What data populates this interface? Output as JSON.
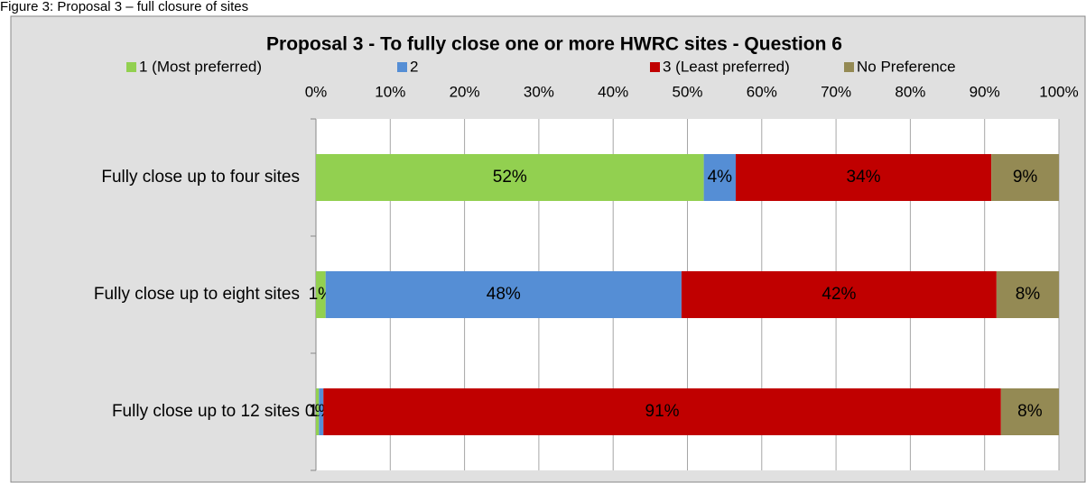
{
  "chart_data": {
    "type": "stacked-barh",
    "caption": "Figure 3: Proposal 3 – full closure of sites",
    "title": "Proposal 3 - To fully close one or more HWRC sites - Question 6",
    "categories": [
      "Fully close up to four sites",
      "Fully close up to eight sites",
      "Fully close up to 12 sites"
    ],
    "series": [
      {
        "name": "1 (Most preferred)",
        "color": "#92d050",
        "values": [
          52.2,
          1.3,
          0.4
        ],
        "value_labels": [
          "52%",
          "1%",
          "0%"
        ]
      },
      {
        "name": "2",
        "color": "#558ed5",
        "values": [
          4.3,
          47.9,
          0.6
        ],
        "value_labels": [
          "4%",
          "48%",
          "1%"
        ]
      },
      {
        "name": "3 (Least preferred)",
        "color": "#c00000",
        "values": [
          34.4,
          42.4,
          91.2
        ],
        "value_labels": [
          "34%",
          "42%",
          "91%"
        ]
      },
      {
        "name": "No Preference",
        "color": "#948a54",
        "values": [
          9.1,
          8.4,
          7.8
        ],
        "value_labels": [
          "9%",
          "8%",
          "8%"
        ]
      }
    ],
    "xlim": [
      0,
      100
    ],
    "xticks": [
      {
        "value": 0,
        "label": "0%"
      },
      {
        "value": 10,
        "label": "10%"
      },
      {
        "value": 20,
        "label": "20%"
      },
      {
        "value": 30,
        "label": "30%"
      },
      {
        "value": 40,
        "label": "40%"
      },
      {
        "value": 50,
        "label": "50%"
      },
      {
        "value": 60,
        "label": "60%"
      },
      {
        "value": 70,
        "label": "70%"
      },
      {
        "value": 80,
        "label": "80%"
      },
      {
        "value": 90,
        "label": "90%"
      },
      {
        "value": 100,
        "label": "100%"
      }
    ],
    "grid": true,
    "legend": "top"
  }
}
